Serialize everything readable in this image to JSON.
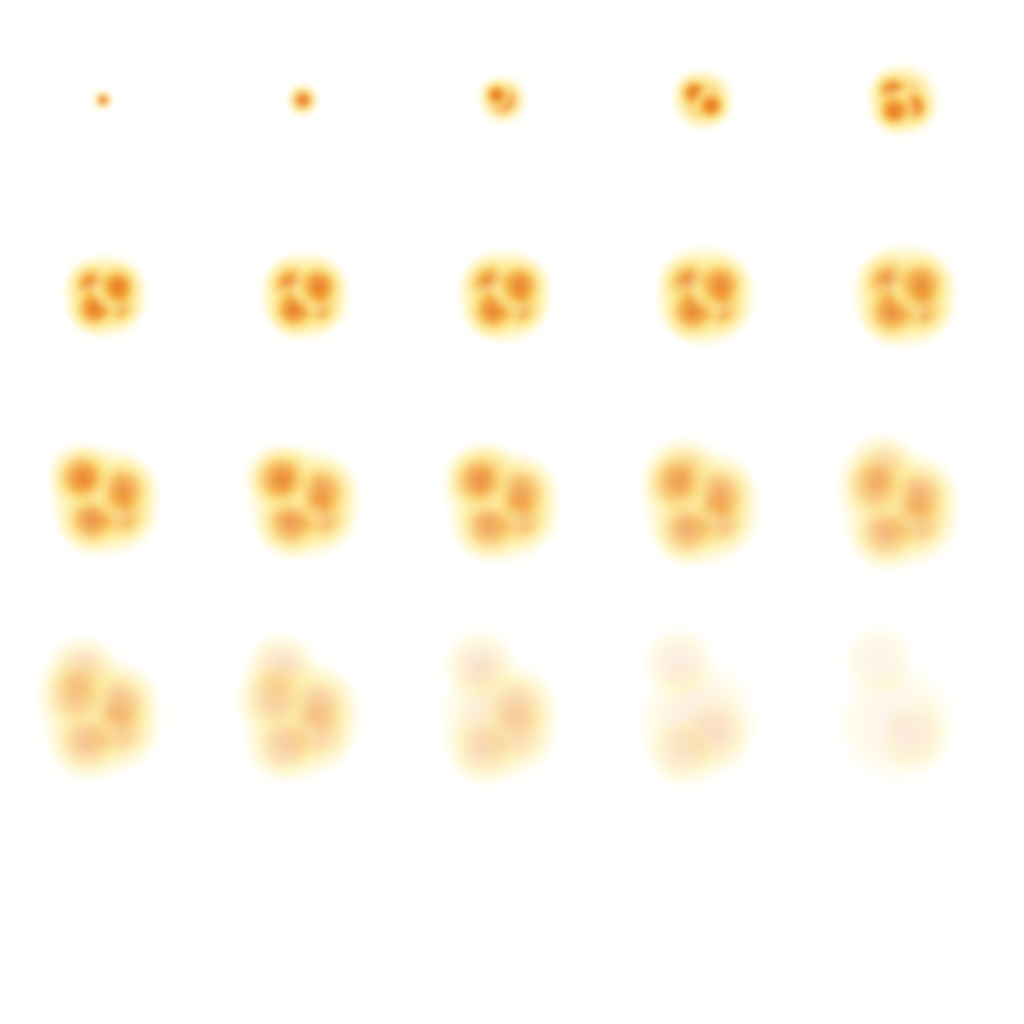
{
  "sprite_sheet": {
    "subject": "fire-explosion-animation",
    "columns": 5,
    "rows": 4,
    "frame_count": 20,
    "colors": {
      "background": "#ffffff",
      "core": "#e0671a",
      "mid": "#f29a2a",
      "glow": "#fce27a",
      "halo": "#fff3b0"
    },
    "frames": [
      {
        "index": 1,
        "spread": 0.1,
        "intensity": 1.0,
        "puffs": 1
      },
      {
        "index": 2,
        "spread": 0.2,
        "intensity": 1.0,
        "puffs": 1
      },
      {
        "index": 3,
        "spread": 0.32,
        "intensity": 1.0,
        "puffs": 2
      },
      {
        "index": 4,
        "spread": 0.42,
        "intensity": 1.0,
        "puffs": 3
      },
      {
        "index": 5,
        "spread": 0.5,
        "intensity": 1.0,
        "puffs": 4
      },
      {
        "index": 6,
        "spread": 0.6,
        "intensity": 0.95,
        "puffs": 5
      },
      {
        "index": 7,
        "spread": 0.64,
        "intensity": 0.9,
        "puffs": 5
      },
      {
        "index": 8,
        "spread": 0.68,
        "intensity": 0.85,
        "puffs": 5
      },
      {
        "index": 9,
        "spread": 0.72,
        "intensity": 0.8,
        "puffs": 5
      },
      {
        "index": 10,
        "spread": 0.76,
        "intensity": 0.74,
        "puffs": 5
      },
      {
        "index": 11,
        "spread": 0.8,
        "intensity": 0.66,
        "puffs": 6
      },
      {
        "index": 12,
        "spread": 0.82,
        "intensity": 0.6,
        "puffs": 6
      },
      {
        "index": 13,
        "spread": 0.84,
        "intensity": 0.54,
        "puffs": 6
      },
      {
        "index": 14,
        "spread": 0.86,
        "intensity": 0.48,
        "puffs": 6
      },
      {
        "index": 15,
        "spread": 0.88,
        "intensity": 0.42,
        "puffs": 6
      },
      {
        "index": 16,
        "spread": 0.9,
        "intensity": 0.34,
        "puffs": 6
      },
      {
        "index": 17,
        "spread": 0.9,
        "intensity": 0.28,
        "puffs": 6
      },
      {
        "index": 18,
        "spread": 0.9,
        "intensity": 0.22,
        "puffs": 5
      },
      {
        "index": 19,
        "spread": 0.88,
        "intensity": 0.16,
        "puffs": 4
      },
      {
        "index": 20,
        "spread": 0.86,
        "intensity": 0.1,
        "puffs": 3
      }
    ]
  }
}
